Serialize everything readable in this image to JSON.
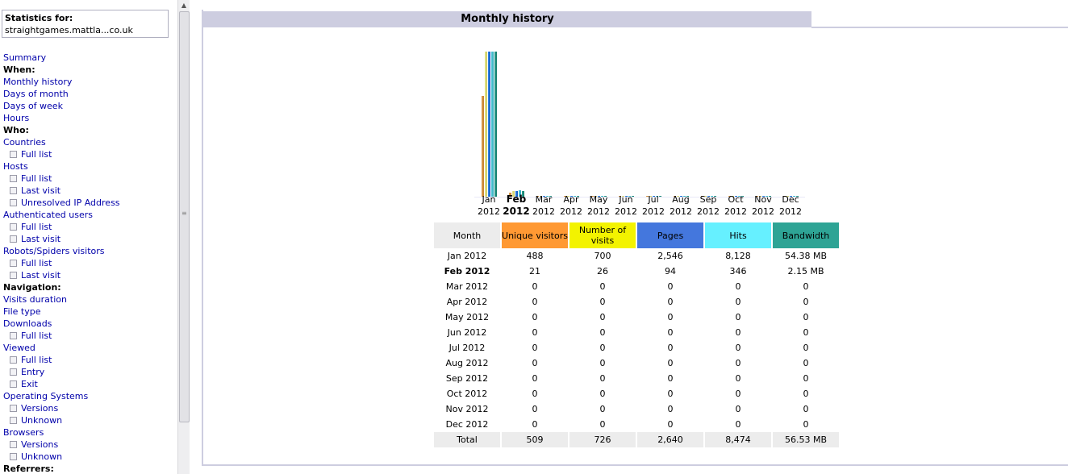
{
  "sidebar": {
    "stats_label": "Statistics for:",
    "site_name": "straightgames.mattla...co.uk",
    "items": [
      {
        "type": "link",
        "label": "Summary"
      },
      {
        "type": "head",
        "label": "When:"
      },
      {
        "type": "link",
        "label": "Monthly history"
      },
      {
        "type": "link",
        "label": "Days of month"
      },
      {
        "type": "link",
        "label": "Days of week"
      },
      {
        "type": "link",
        "label": "Hours"
      },
      {
        "type": "head",
        "label": "Who:"
      },
      {
        "type": "link",
        "label": "Countries"
      },
      {
        "type": "sub",
        "label": "Full list"
      },
      {
        "type": "link",
        "label": "Hosts"
      },
      {
        "type": "sub",
        "label": "Full list"
      },
      {
        "type": "sub",
        "label": "Last visit"
      },
      {
        "type": "sub",
        "label": "Unresolved IP Address"
      },
      {
        "type": "link",
        "label": "Authenticated users"
      },
      {
        "type": "sub",
        "label": "Full list"
      },
      {
        "type": "sub",
        "label": "Last visit"
      },
      {
        "type": "link",
        "label": "Robots/Spiders visitors"
      },
      {
        "type": "sub",
        "label": "Full list"
      },
      {
        "type": "sub",
        "label": "Last visit"
      },
      {
        "type": "head",
        "label": "Navigation:"
      },
      {
        "type": "link",
        "label": "Visits duration"
      },
      {
        "type": "link",
        "label": "File type"
      },
      {
        "type": "link",
        "label": "Downloads"
      },
      {
        "type": "sub",
        "label": "Full list"
      },
      {
        "type": "link",
        "label": "Viewed"
      },
      {
        "type": "sub",
        "label": "Full list"
      },
      {
        "type": "sub",
        "label": "Entry"
      },
      {
        "type": "sub",
        "label": "Exit"
      },
      {
        "type": "link",
        "label": "Operating Systems"
      },
      {
        "type": "sub",
        "label": "Versions"
      },
      {
        "type": "sub",
        "label": "Unknown"
      },
      {
        "type": "link",
        "label": "Browsers"
      },
      {
        "type": "sub",
        "label": "Versions"
      },
      {
        "type": "sub",
        "label": "Unknown"
      },
      {
        "type": "head",
        "label": "Referrers:"
      }
    ]
  },
  "main": {
    "title": "Monthly history"
  },
  "colors": {
    "unique_visitors": "#ff9933",
    "visits": "#f3f300",
    "pages": "#4477dd",
    "hits": "#66f0ff",
    "bandwidth": "#2ea495",
    "header_bg": "#ececec",
    "title_bar": "#cdcde0"
  },
  "chart_data": {
    "type": "bar",
    "categories": [
      [
        "Jan",
        "2012"
      ],
      [
        "Feb",
        "2012"
      ],
      [
        "Mar",
        "2012"
      ],
      [
        "Apr",
        "2012"
      ],
      [
        "May",
        "2012"
      ],
      [
        "Jun",
        "2012"
      ],
      [
        "Jul",
        "2012"
      ],
      [
        "Aug",
        "2012"
      ],
      [
        "Sep",
        "2012"
      ],
      [
        "Oct",
        "2012"
      ],
      [
        "Nov",
        "2012"
      ],
      [
        "Dec",
        "2012"
      ]
    ],
    "current_month_index": 1,
    "series": [
      {
        "name": "Unique visitors",
        "values": [
          488,
          21,
          0,
          0,
          0,
          0,
          0,
          0,
          0,
          0,
          0,
          0
        ]
      },
      {
        "name": "Number of visits",
        "values": [
          700,
          26,
          0,
          0,
          0,
          0,
          0,
          0,
          0,
          0,
          0,
          0
        ]
      },
      {
        "name": "Pages",
        "values": [
          2546,
          94,
          0,
          0,
          0,
          0,
          0,
          0,
          0,
          0,
          0,
          0
        ]
      },
      {
        "name": "Hits",
        "values": [
          8128,
          346,
          0,
          0,
          0,
          0,
          0,
          0,
          0,
          0,
          0,
          0
        ]
      },
      {
        "name": "Bandwidth",
        "values": [
          54.38,
          2.15,
          0,
          0,
          0,
          0,
          0,
          0,
          0,
          0,
          0,
          0
        ]
      }
    ]
  },
  "table": {
    "headers": [
      "Month",
      "Unique visitors",
      "Number of visits",
      "Pages",
      "Hits",
      "Bandwidth"
    ],
    "rows": [
      [
        "Jan 2012",
        "488",
        "700",
        "2,546",
        "8,128",
        "54.38 MB"
      ],
      [
        "Feb 2012",
        "21",
        "26",
        "94",
        "346",
        "2.15 MB"
      ],
      [
        "Mar 2012",
        "0",
        "0",
        "0",
        "0",
        "0"
      ],
      [
        "Apr 2012",
        "0",
        "0",
        "0",
        "0",
        "0"
      ],
      [
        "May 2012",
        "0",
        "0",
        "0",
        "0",
        "0"
      ],
      [
        "Jun 2012",
        "0",
        "0",
        "0",
        "0",
        "0"
      ],
      [
        "Jul 2012",
        "0",
        "0",
        "0",
        "0",
        "0"
      ],
      [
        "Aug 2012",
        "0",
        "0",
        "0",
        "0",
        "0"
      ],
      [
        "Sep 2012",
        "0",
        "0",
        "0",
        "0",
        "0"
      ],
      [
        "Oct 2012",
        "0",
        "0",
        "0",
        "0",
        "0"
      ],
      [
        "Nov 2012",
        "0",
        "0",
        "0",
        "0",
        "0"
      ],
      [
        "Dec 2012",
        "0",
        "0",
        "0",
        "0",
        "0"
      ]
    ],
    "total": [
      "Total",
      "509",
      "726",
      "2,640",
      "8,474",
      "56.53 MB"
    ]
  }
}
